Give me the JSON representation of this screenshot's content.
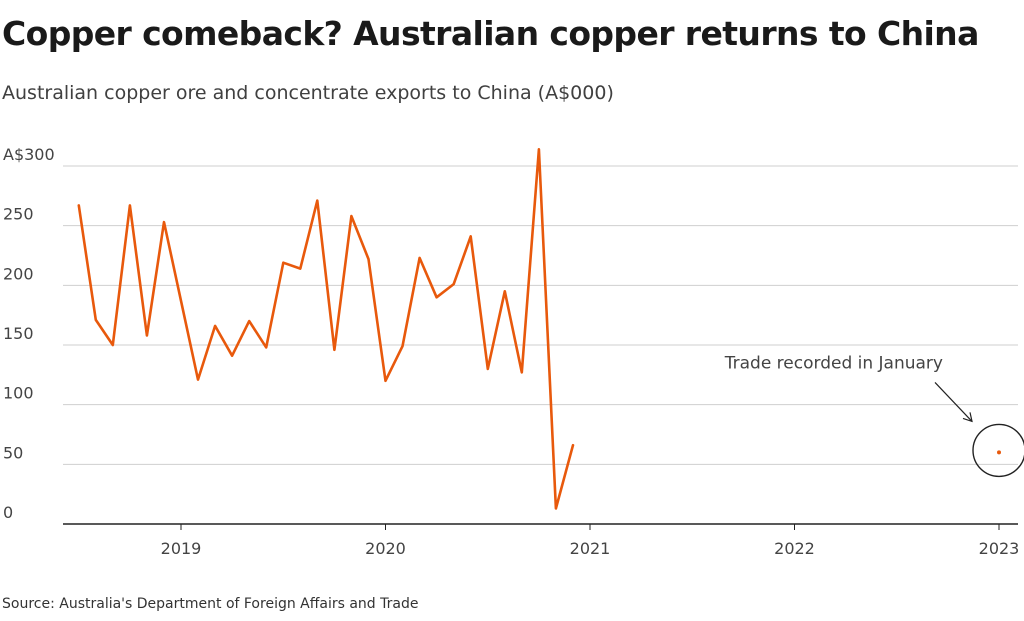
{
  "chart_data": {
    "type": "line",
    "title": "Copper comeback? Australian copper returns to China",
    "subtitle": "Australian copper ore and concentrate exports to China (A$000)",
    "source": "Source: Australia's Department of Foreign Affairs and Trade",
    "x_ticks": [
      "2019",
      "2020",
      "2021",
      "2022",
      "2023"
    ],
    "y_tick_labels": [
      "0",
      "50",
      "100",
      "150",
      "200",
      "250",
      "A$300"
    ],
    "y_ticks": [
      0,
      50,
      100,
      150,
      200,
      250,
      300
    ],
    "ylim": [
      0,
      300
    ],
    "grid": true,
    "line_color": "#e8590c",
    "series": [
      {
        "dates": [
          "2018-07",
          "2018-08",
          "2018-09",
          "2018-10",
          "2018-11",
          "2018-12",
          "2019-01",
          "2019-02",
          "2019-03",
          "2019-04",
          "2019-05",
          "2019-06",
          "2019-07",
          "2019-08",
          "2019-09",
          "2019-10",
          "2019-11",
          "2019-12",
          "2020-01",
          "2020-02",
          "2020-03",
          "2020-04",
          "2020-05",
          "2020-06",
          "2020-07",
          "2020-08",
          "2020-09",
          "2020-10",
          "2020-11",
          "2020-12"
        ],
        "values": [
          267,
          171,
          150,
          267,
          158,
          253,
          187,
          121,
          166,
          141,
          170,
          148,
          219,
          214,
          271,
          146,
          258,
          222,
          120,
          149,
          223,
          190,
          201,
          241,
          130,
          195,
          127,
          314,
          13,
          66
        ]
      }
    ],
    "annotation": {
      "text": "Trade recorded in January",
      "date": "2023-01",
      "value": 60
    }
  }
}
